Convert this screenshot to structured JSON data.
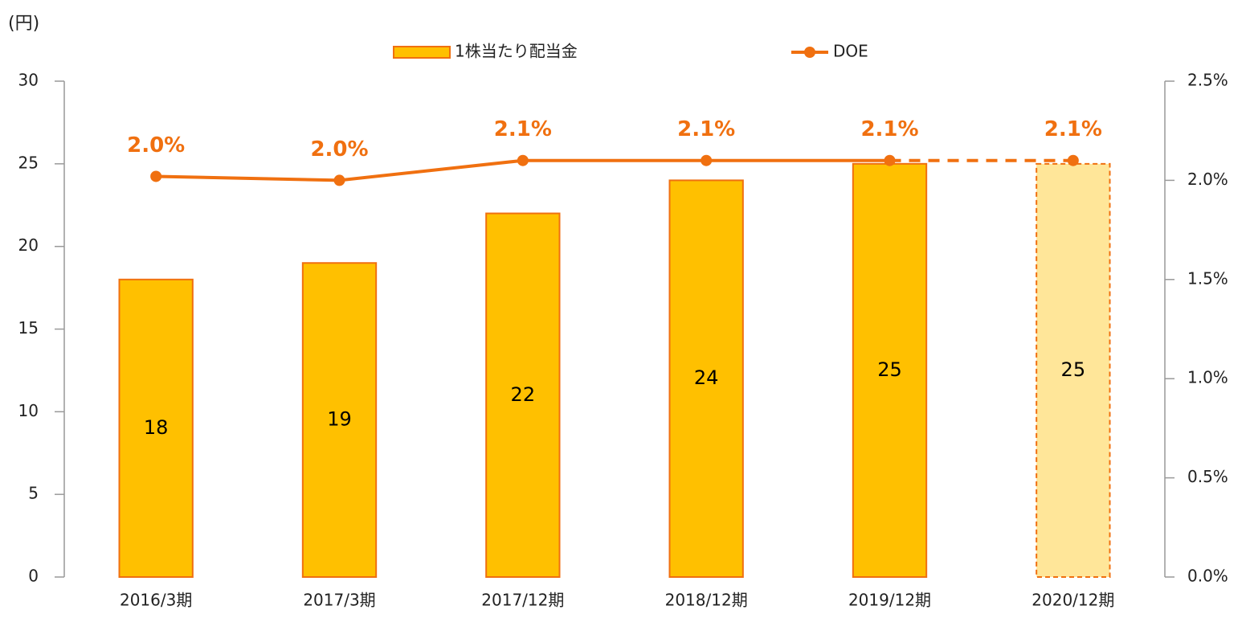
{
  "chart_data": {
    "type": "bar_line",
    "y_label": "(円)",
    "categories": [
      "2016/3期",
      "2017/3期",
      "2017/12期",
      "2018/12期",
      "2019/12期",
      "2020/12期"
    ],
    "series": [
      {
        "name": "1株当たり配当金",
        "type": "bar",
        "color": "#ffc000",
        "edge_color": "#f07010",
        "values": [
          18,
          19,
          22,
          24,
          25,
          25
        ],
        "colors": [
          "#ffc000",
          "#ffc000",
          "#ffc000",
          "#ffc000",
          "#ffc000",
          "#ffe699"
        ],
        "dashed": [
          false,
          false,
          false,
          false,
          false,
          true
        ]
      },
      {
        "name": "DOE",
        "type": "line",
        "axis": "y2",
        "color": "#f07010",
        "values": [
          2.02,
          2.0,
          2.1,
          2.1,
          2.1,
          2.1
        ],
        "value_labels": [
          "2.0%",
          "2.0%",
          "2.1%",
          "2.1%",
          "2.1%",
          "2.1%"
        ],
        "dashed": [
          false,
          false,
          false,
          false,
          false,
          true
        ]
      }
    ],
    "ylim": [
      0,
      30
    ],
    "yticks": [
      0,
      5,
      10,
      15,
      20,
      25,
      30
    ],
    "y2lim": [
      0,
      2.5
    ],
    "y2ticks": [
      {
        "value": 0,
        "label": "0.0%"
      },
      {
        "value": 0.5,
        "label": "0.5%"
      },
      {
        "value": 1,
        "label": "1.0%"
      },
      {
        "value": 1.5,
        "label": "1.5%"
      },
      {
        "value": 2,
        "label": "2.0%"
      },
      {
        "value": 2.5,
        "label": "2.5%"
      }
    ],
    "legend": "top"
  }
}
